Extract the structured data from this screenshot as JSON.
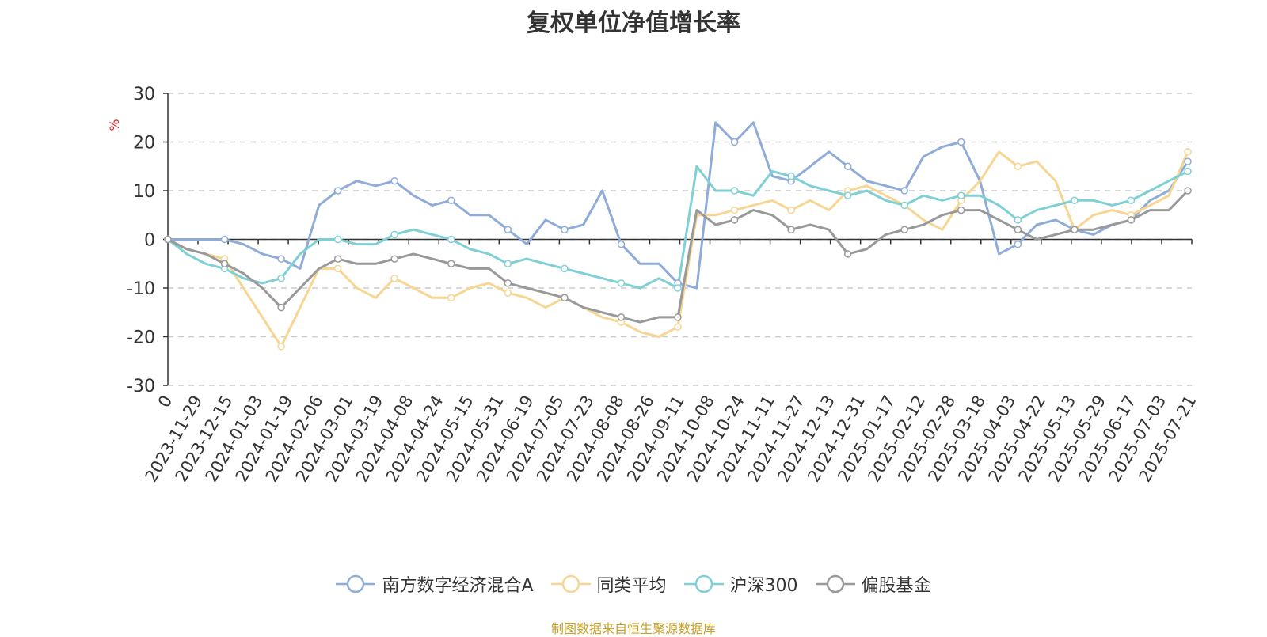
{
  "title": "复权单位净值增长率",
  "source_note": "制图数据来自恒生聚源数据库",
  "chart_data": {
    "type": "line",
    "title": "复权单位净值增长率",
    "ylabel": "%",
    "ylim": [
      -30,
      30
    ],
    "yticks": [
      -30,
      -20,
      -10,
      0,
      10,
      20,
      30
    ],
    "grid": true,
    "legend_position": "bottom",
    "x_tick_labels": [
      "0",
      "2023-11-29",
      "2023-12-15",
      "2024-01-03",
      "2024-01-19",
      "2024-02-06",
      "2024-03-01",
      "2024-03-19",
      "2024-04-08",
      "2024-04-24",
      "2024-05-15",
      "2024-05-31",
      "2024-06-19",
      "2024-07-05",
      "2024-07-23",
      "2024-08-08",
      "2024-08-26",
      "2024-09-11",
      "2024-10-08",
      "2024-10-24",
      "2024-11-11",
      "2024-11-27",
      "2024-12-13",
      "2024-12-31",
      "2025-01-17",
      "2025-02-12",
      "2025-02-28",
      "2025-03-18",
      "2025-04-03",
      "2025-04-22",
      "2025-05-13",
      "2025-05-29",
      "2025-06-17",
      "2025-07-03",
      "2025-07-21"
    ],
    "series": [
      {
        "name": "南方数字经济混合A",
        "color": "#8facd9",
        "values": [
          0,
          0,
          0,
          0,
          -1,
          -3,
          -4,
          -6,
          7,
          10,
          12,
          11,
          12,
          9,
          7,
          8,
          5,
          5,
          2,
          -1,
          4,
          2,
          3,
          10,
          -1,
          -5,
          -5,
          -9,
          -10,
          24,
          20,
          24,
          13,
          12,
          15,
          18,
          15,
          12,
          11,
          10,
          17,
          19,
          20,
          12,
          -3,
          -1,
          3,
          4,
          2,
          1,
          3,
          4,
          8,
          10,
          16
        ]
      },
      {
        "name": "同类平均",
        "color": "#f7d592",
        "values": [
          0,
          -2,
          -3,
          -4,
          -10,
          -16,
          -22,
          -14,
          -6,
          -6,
          -10,
          -12,
          -8,
          -10,
          -12,
          -12,
          -10,
          -9,
          -11,
          -12,
          -14,
          -12,
          -14,
          -16,
          -17,
          -19,
          -20,
          -18,
          5,
          5,
          6,
          7,
          8,
          6,
          8,
          6,
          10,
          11,
          9,
          7,
          4,
          2,
          8,
          12,
          18,
          15,
          16,
          12,
          2,
          5,
          6,
          5,
          7,
          9,
          18
        ]
      },
      {
        "name": "沪深300",
        "color": "#7fd0d5",
        "values": [
          0,
          -3,
          -5,
          -6,
          -8,
          -9,
          -8,
          -3,
          0,
          0,
          -1,
          -1,
          1,
          2,
          1,
          0,
          -2,
          -3,
          -5,
          -4,
          -5,
          -6,
          -7,
          -8,
          -9,
          -10,
          -8,
          -10,
          15,
          10,
          10,
          9,
          14,
          13,
          11,
          10,
          9,
          10,
          8,
          7,
          9,
          8,
          9,
          9,
          7,
          4,
          6,
          7,
          8,
          8,
          7,
          8,
          10,
          12,
          14
        ]
      },
      {
        "name": "偏股基金",
        "color": "#999999",
        "values": [
          0,
          -2,
          -3,
          -5,
          -7,
          -10,
          -14,
          -10,
          -6,
          -4,
          -5,
          -5,
          -4,
          -3,
          -4,
          -5,
          -6,
          -6,
          -9,
          -10,
          -11,
          -12,
          -14,
          -15,
          -16,
          -17,
          -16,
          -16,
          6,
          3,
          4,
          6,
          5,
          2,
          3,
          2,
          -3,
          -2,
          1,
          2,
          3,
          5,
          6,
          6,
          4,
          2,
          0,
          1,
          2,
          2,
          3,
          4,
          6,
          6,
          10
        ]
      }
    ]
  }
}
